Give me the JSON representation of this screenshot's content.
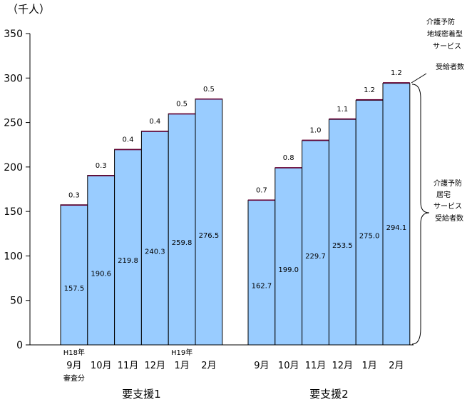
{
  "chart_data": {
    "type": "bar",
    "stacked": true,
    "yunit": "（千人）",
    "ylim": [
      0,
      350
    ],
    "yticks": [
      "0",
      "50",
      "100",
      "150",
      "200",
      "250",
      "300",
      "350"
    ],
    "groups": [
      {
        "name": "要支援1",
        "categories": [
          "9月",
          "10月",
          "11月",
          "12月",
          "1月",
          "2月"
        ],
        "cat_notes": [
          {
            "index": 0,
            "above": "H18年",
            "below": "審査分"
          },
          {
            "index": 4,
            "above": "H19年",
            "below": ""
          }
        ],
        "series": [
          {
            "values": [
              157.5,
              190.6,
              219.8,
              240.3,
              259.8,
              276.5
            ],
            "labels": [
              "157.5",
              "190.6",
              "219.8",
              "240.3",
              "259.8",
              "276.5"
            ]
          },
          {
            "values": [
              0.3,
              0.3,
              0.4,
              0.4,
              0.5,
              0.5
            ],
            "labels": [
              "0.3",
              "0.3",
              "0.4",
              "0.4",
              "0.5",
              "0.5"
            ]
          }
        ]
      },
      {
        "name": "要支援2",
        "categories": [
          "9月",
          "10月",
          "11月",
          "12月",
          "1月",
          "2月"
        ],
        "cat_notes": [],
        "series": [
          {
            "values": [
              162.7,
              199.0,
              229.7,
              253.5,
              275.0,
              294.1
            ],
            "labels": [
              "162.7",
              "199.0",
              "229.7",
              "253.5",
              "275.0",
              "294.1"
            ]
          },
          {
            "values": [
              0.7,
              0.8,
              1.0,
              1.1,
              1.2,
              1.2
            ],
            "labels": [
              "0.7",
              "0.8",
              "1.0",
              "1.1",
              "1.2",
              "1.2"
            ]
          }
        ]
      }
    ],
    "annotations": {
      "top": [
        "介護予防",
        "地域密着型",
        "サービス",
        "受給者数"
      ],
      "side": [
        "介護予防",
        "居宅",
        "サービス",
        "受給者数"
      ]
    },
    "colors": {
      "bar": "#99ccff",
      "top_segment": "#660033",
      "border": "#000000"
    }
  }
}
